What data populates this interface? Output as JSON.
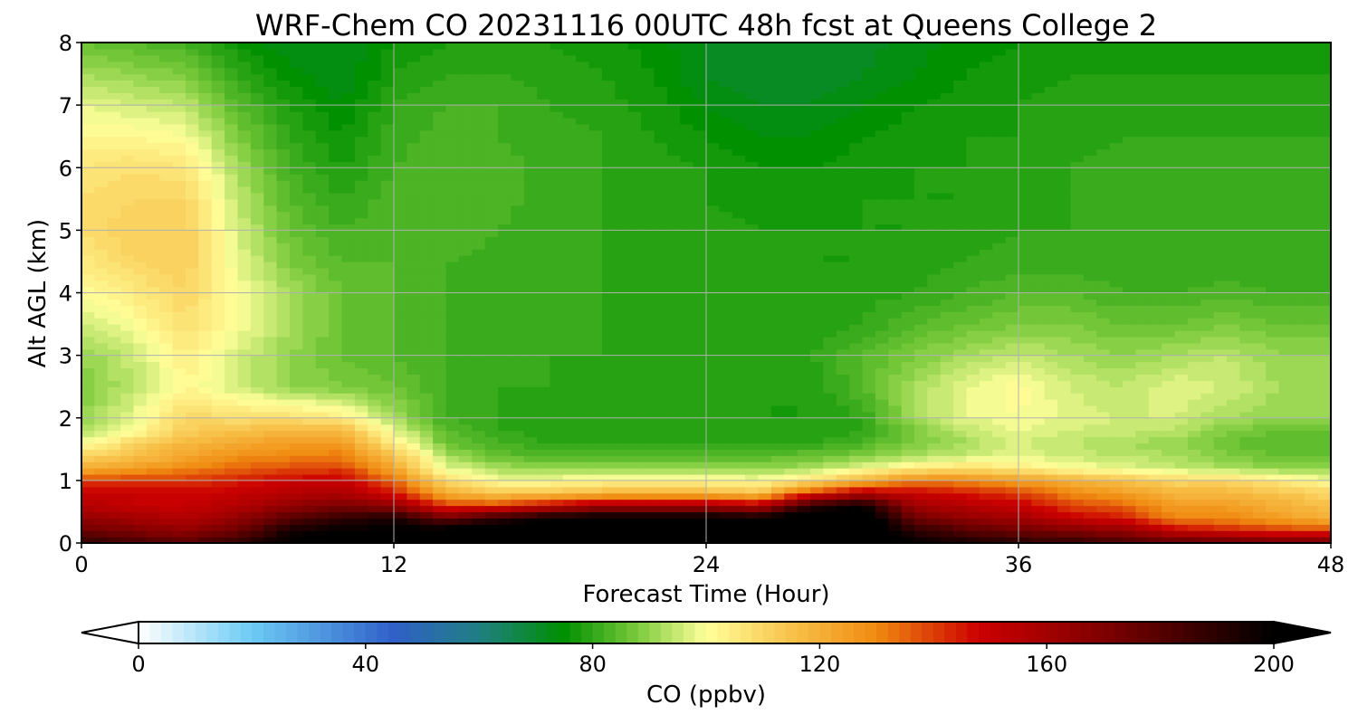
{
  "chart_data": {
    "type": "heatmap",
    "title": "WRF-Chem CO  20231116 00UTC 48h fcst at Queens College 2",
    "xlabel": "Forecast Time (Hour)",
    "ylabel": "Alt AGL (km)",
    "xlim": [
      0,
      48
    ],
    "ylim": [
      0,
      8
    ],
    "xticks": [
      0,
      12,
      24,
      36,
      48
    ],
    "yticks": [
      0,
      1,
      2,
      3,
      4,
      5,
      6,
      7,
      8
    ],
    "grid": true,
    "x": [
      0,
      2,
      4,
      6,
      8,
      10,
      12,
      14,
      16,
      18,
      20,
      22,
      24,
      26,
      28,
      30,
      32,
      34,
      36,
      38,
      40,
      42,
      44,
      46,
      48
    ],
    "y": [
      0,
      0.2,
      0.4,
      0.6,
      0.8,
      1.0,
      1.2,
      1.4,
      1.6,
      1.8,
      2.0,
      2.5,
      3.0,
      3.5,
      4.0,
      4.5,
      5.0,
      5.5,
      6.0,
      6.5,
      7.0,
      7.5,
      8.0
    ],
    "z": [
      [
        190,
        185,
        180,
        190,
        200,
        205,
        205,
        205,
        210,
        210,
        210,
        210,
        210,
        210,
        210,
        210,
        200,
        195,
        190,
        190,
        185,
        180,
        180,
        175,
        175
      ],
      [
        175,
        170,
        165,
        175,
        195,
        200,
        200,
        205,
        210,
        210,
        210,
        210,
        210,
        210,
        210,
        210,
        190,
        180,
        175,
        170,
        165,
        150,
        145,
        140,
        140
      ],
      [
        165,
        160,
        155,
        165,
        180,
        190,
        195,
        175,
        190,
        200,
        205,
        205,
        205,
        200,
        210,
        210,
        175,
        165,
        160,
        150,
        145,
        130,
        130,
        125,
        120
      ],
      [
        155,
        150,
        150,
        155,
        165,
        170,
        165,
        140,
        140,
        150,
        160,
        160,
        160,
        155,
        190,
        200,
        160,
        155,
        150,
        140,
        135,
        125,
        125,
        120,
        115
      ],
      [
        150,
        150,
        148,
        150,
        155,
        158,
        145,
        120,
        115,
        115,
        118,
        120,
        118,
        115,
        140,
        155,
        150,
        145,
        140,
        130,
        125,
        118,
        118,
        115,
        110
      ],
      [
        140,
        140,
        140,
        145,
        148,
        150,
        135,
        108,
        100,
        100,
        102,
        103,
        102,
        100,
        108,
        120,
        130,
        130,
        125,
        120,
        115,
        110,
        110,
        105,
        100
      ],
      [
        120,
        125,
        130,
        135,
        138,
        140,
        122,
        98,
        92,
        90,
        90,
        90,
        90,
        90,
        92,
        98,
        105,
        108,
        105,
        100,
        98,
        95,
        92,
        90,
        90
      ],
      [
        110,
        115,
        122,
        128,
        130,
        132,
        115,
        92,
        85,
        84,
        84,
        84,
        84,
        84,
        86,
        88,
        92,
        95,
        98,
        95,
        94,
        92,
        88,
        86,
        86
      ],
      [
        100,
        110,
        118,
        122,
        125,
        125,
        105,
        86,
        82,
        80,
        80,
        80,
        80,
        79,
        80,
        83,
        88,
        92,
        96,
        94,
        92,
        90,
        86,
        84,
        84
      ],
      [
        92,
        100,
        112,
        115,
        118,
        118,
        98,
        84,
        80,
        79,
        79,
        79,
        79,
        78,
        78,
        80,
        88,
        94,
        98,
        96,
        95,
        94,
        88,
        86,
        86
      ],
      [
        90,
        98,
        110,
        108,
        108,
        105,
        92,
        82,
        80,
        79,
        79,
        79,
        79,
        78,
        78,
        80,
        92,
        98,
        100,
        97,
        96,
        96,
        92,
        90,
        90
      ],
      [
        88,
        94,
        102,
        96,
        90,
        88,
        86,
        82,
        80,
        80,
        79,
        79,
        79,
        78,
        78,
        84,
        92,
        98,
        101,
        96,
        94,
        98,
        96,
        92,
        92
      ],
      [
        90,
        95,
        104,
        96,
        90,
        86,
        84,
        82,
        80,
        80,
        80,
        79,
        79,
        78,
        80,
        84,
        88,
        92,
        95,
        92,
        90,
        92,
        94,
        90,
        90
      ],
      [
        95,
        100,
        108,
        100,
        92,
        86,
        84,
        82,
        80,
        80,
        80,
        79,
        79,
        78,
        78,
        80,
        84,
        86,
        88,
        88,
        86,
        86,
        88,
        86,
        86
      ],
      [
        100,
        105,
        110,
        100,
        92,
        86,
        84,
        82,
        80,
        80,
        80,
        79,
        79,
        79,
        78,
        79,
        80,
        82,
        84,
        84,
        82,
        82,
        83,
        82,
        82
      ],
      [
        105,
        110,
        112,
        98,
        88,
        84,
        84,
        82,
        81,
        80,
        80,
        79,
        79,
        79,
        78,
        78,
        79,
        80,
        81,
        81,
        80,
        80,
        80,
        80,
        80
      ],
      [
        108,
        112,
        112,
        96,
        86,
        82,
        84,
        84,
        82,
        80,
        80,
        79,
        79,
        78,
        78,
        78,
        78,
        79,
        80,
        80,
        80,
        80,
        80,
        80,
        80
      ],
      [
        108,
        110,
        110,
        94,
        84,
        80,
        83,
        84,
        83,
        81,
        80,
        79,
        78,
        77,
        77,
        78,
        78,
        78,
        79,
        80,
        80,
        80,
        80,
        80,
        81
      ],
      [
        106,
        108,
        106,
        92,
        82,
        78,
        82,
        84,
        83,
        81,
        80,
        79,
        78,
        76,
        76,
        77,
        78,
        78,
        79,
        80,
        81,
        80,
        80,
        80,
        81
      ],
      [
        102,
        102,
        100,
        88,
        80,
        76,
        81,
        83,
        82,
        81,
        80,
        78,
        76,
        74,
        74,
        76,
        77,
        78,
        78,
        79,
        80,
        80,
        80,
        80,
        80
      ],
      [
        98,
        96,
        94,
        84,
        78,
        74,
        80,
        82,
        82,
        80,
        79,
        77,
        74,
        72,
        72,
        74,
        76,
        77,
        78,
        79,
        79,
        79,
        79,
        79,
        79
      ],
      [
        92,
        90,
        88,
        80,
        75,
        72,
        78,
        80,
        80,
        79,
        78,
        76,
        72,
        70,
        70,
        72,
        74,
        76,
        77,
        78,
        78,
        78,
        78,
        78,
        78
      ],
      [
        86,
        84,
        82,
        76,
        72,
        72,
        76,
        78,
        78,
        78,
        77,
        75,
        72,
        70,
        70,
        71,
        73,
        75,
        76,
        77,
        77,
        77,
        77,
        77,
        77
      ]
    ],
    "colorbar": {
      "label": "CO  (ppbv)",
      "ticks": [
        0,
        40,
        80,
        120,
        160,
        200
      ],
      "range": [
        0,
        200
      ],
      "extend": "both",
      "stops": [
        {
          "value": 0,
          "color": "#ffffff"
        },
        {
          "value": 20,
          "color": "#6ccaf4"
        },
        {
          "value": 45,
          "color": "#3060c8"
        },
        {
          "value": 60,
          "color": "#1f7f82"
        },
        {
          "value": 75,
          "color": "#009000"
        },
        {
          "value": 88,
          "color": "#7ccb3c"
        },
        {
          "value": 100,
          "color": "#ffff9a"
        },
        {
          "value": 115,
          "color": "#f8c24a"
        },
        {
          "value": 130,
          "color": "#f08a10"
        },
        {
          "value": 148,
          "color": "#cc0000"
        },
        {
          "value": 170,
          "color": "#800000"
        },
        {
          "value": 200,
          "color": "#000000"
        }
      ]
    }
  }
}
